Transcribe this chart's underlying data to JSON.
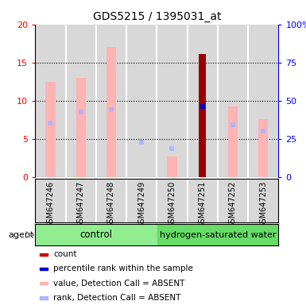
{
  "title": "GDS5215 / 1395031_at",
  "samples": [
    "GSM647246",
    "GSM647247",
    "GSM647248",
    "GSM647249",
    "GSM647250",
    "GSM647251",
    "GSM647252",
    "GSM647253"
  ],
  "value_absent": [
    12.5,
    13.0,
    17.1,
    null,
    2.7,
    null,
    9.2,
    7.6
  ],
  "rank_absent": [
    7.1,
    8.5,
    8.8,
    4.6,
    3.7,
    null,
    6.8,
    6.0
  ],
  "value_present": [
    null,
    null,
    null,
    null,
    null,
    16.1,
    null,
    null
  ],
  "rank_present": [
    null,
    null,
    null,
    null,
    null,
    9.2,
    null,
    null
  ],
  "ylim_left": [
    0,
    20
  ],
  "ylim_right": [
    0,
    100
  ],
  "yticks_left": [
    0,
    5,
    10,
    15,
    20
  ],
  "yticks_right": [
    0,
    25,
    50,
    75,
    100
  ],
  "ytick_labels_right": [
    "0",
    "25",
    "50",
    "75",
    "100%"
  ],
  "color_value_absent": "#ffb3b3",
  "color_rank_absent": "#b3b3ff",
  "color_value_present": "#990000",
  "color_rank_present": "#0000cc",
  "bar_width": 0.32,
  "col_bg": "#d8d8d8",
  "col_sep": "#ffffff",
  "control_bg": "#90ee90",
  "hydrogen_bg": "#66dd66",
  "legend_items": [
    {
      "color": "#cc0000",
      "label": "count"
    },
    {
      "color": "#0000cc",
      "label": "percentile rank within the sample"
    },
    {
      "color": "#ffb3b3",
      "label": "value, Detection Call = ABSENT"
    },
    {
      "color": "#b3b3ff",
      "label": "rank, Detection Call = ABSENT"
    }
  ]
}
